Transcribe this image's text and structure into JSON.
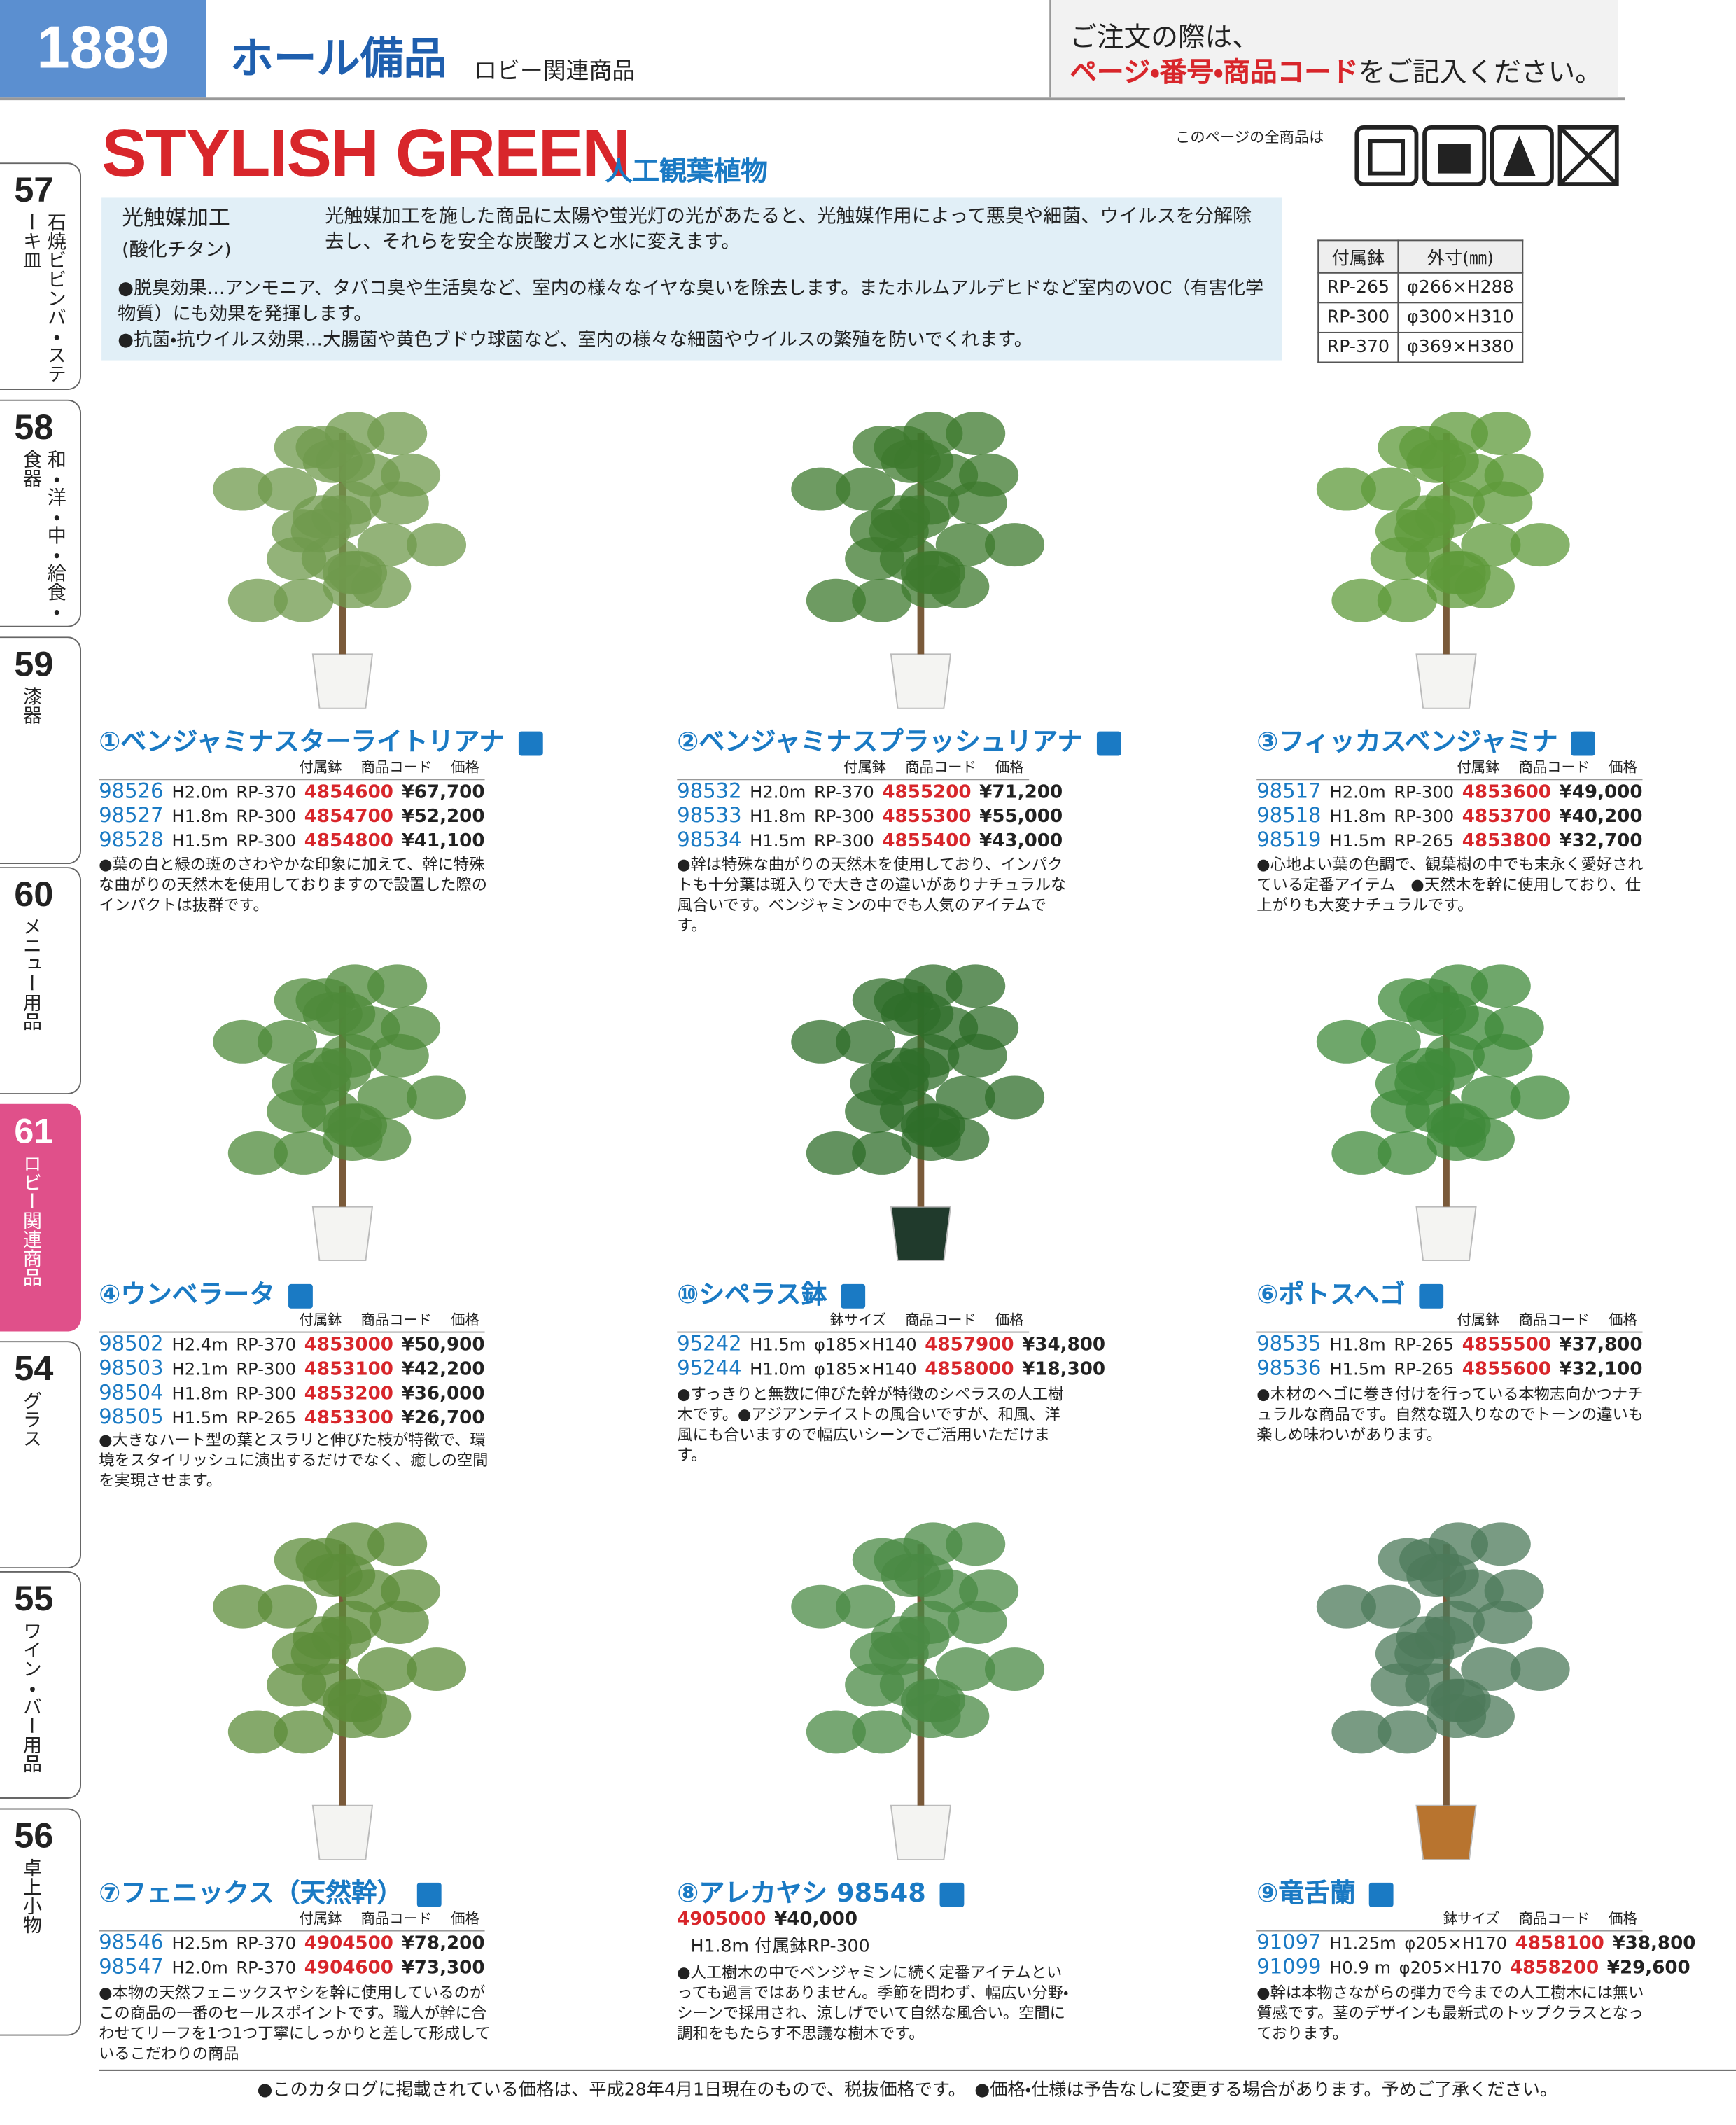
{
  "header": {
    "page": "1889",
    "section": "ホール備品",
    "subsection": "ロビー関連商品",
    "notice_line1": "ご注文の際は、",
    "notice_emph": "ページ・番号・商品コード",
    "notice_tail": "をご記入ください。"
  },
  "tabs": [
    {
      "num": "57",
      "label": "石焼ビビンバ・ステーキ皿"
    },
    {
      "num": "58",
      "label": "和・洋・中・給食・食器"
    },
    {
      "num": "59",
      "label": "漆器"
    },
    {
      "num": "60",
      "label": "メニュー用品"
    },
    {
      "num": "61",
      "label": "ロビー関連商品",
      "active": true
    },
    {
      "num": "54",
      "label": "グラス"
    },
    {
      "num": "55",
      "label": "ワイン・バー用品"
    },
    {
      "num": "56",
      "label": "卓上小物"
    }
  ],
  "title": {
    "main": "STYLISH GREEN",
    "sub": "人工観葉植物",
    "icons_label": "このページの全商品は"
  },
  "info": {
    "heading": "光触媒加工",
    "subheading": "(酸化チタン)",
    "description": "光触媒加工を施した商品に太陽や蛍光灯の光があたると、光触媒作用によって悪臭や細菌、ウイルスを分解除去し、それらを安全な炭酸ガスと水に変えます。",
    "bullets": [
      "●脱臭効果…アンモニア、タバコ臭や生活臭など、室内の様々なイヤな臭いを除去します。またホルムアルデヒドなど室内のVOC（有害化学物質）にも効果を発揮します。",
      "●抗菌・抗ウイルス効果…大腸菌や黄色ブドウ球菌など、室内の様々な細菌やウイルスの繁殖を防いでくれます。"
    ]
  },
  "pot_table": {
    "header": [
      "付属鉢",
      "外寸(㎜)"
    ],
    "rows": [
      [
        "RP-265",
        "φ266×H288"
      ],
      [
        "RP-300",
        "φ300×H310"
      ],
      [
        "RP-370",
        "φ369×H380"
      ]
    ]
  },
  "products": [
    {
      "number": "①",
      "name": "ベンジャミナスターライトリアナ",
      "columns": [
        "付属鉢",
        "商品コード",
        "価格"
      ],
      "rows": [
        [
          "98526",
          "H2.0m",
          "RP-370",
          "4854600",
          "¥67,700"
        ],
        [
          "98527",
          "H1.8m",
          "RP-300",
          "4854700",
          "¥52,200"
        ],
        [
          "98528",
          "H1.5m",
          "RP-300",
          "4854800",
          "¥41,100"
        ]
      ],
      "note": "●葉の白と緑の斑のさわやかな印象に加えて、幹に特殊な曲がりの天然木を使用しておりますので設置した際のインパクトは抜群です。"
    },
    {
      "number": "②",
      "name": "ベンジャミナスプラッシュリアナ",
      "columns": [
        "付属鉢",
        "商品コード",
        "価格"
      ],
      "rows": [
        [
          "98532",
          "H2.0m",
          "RP-370",
          "4855200",
          "¥71,200"
        ],
        [
          "98533",
          "H1.8m",
          "RP-300",
          "4855300",
          "¥55,000"
        ],
        [
          "98534",
          "H1.5m",
          "RP-300",
          "4855400",
          "¥43,000"
        ]
      ],
      "note": "●幹は特殊な曲がりの天然木を使用しており、インパクトも十分葉は斑入りで大きさの違いがありナチュラルな風合いです。ベンジャミンの中でも人気のアイテムです。"
    },
    {
      "number": "③",
      "name": "フィッカスベンジャミナ",
      "columns": [
        "付属鉢",
        "商品コード",
        "価格"
      ],
      "rows": [
        [
          "98517",
          "H2.0m",
          "RP-300",
          "4853600",
          "¥49,000"
        ],
        [
          "98518",
          "H1.8m",
          "RP-300",
          "4853700",
          "¥40,200"
        ],
        [
          "98519",
          "H1.5m",
          "RP-265",
          "4853800",
          "¥32,700"
        ]
      ],
      "note": "●心地よい葉の色調で、観葉樹の中でも末永く愛好されている定番アイテム　●天然木を幹に使用しており、仕上がりも大変ナチュラルです。"
    },
    {
      "number": "④",
      "name": "ウンベラータ",
      "columns": [
        "付属鉢",
        "商品コード",
        "価格"
      ],
      "rows": [
        [
          "98502",
          "H2.4m",
          "RP-370",
          "4853000",
          "¥50,900"
        ],
        [
          "98503",
          "H2.1m",
          "RP-300",
          "4853100",
          "¥42,200"
        ],
        [
          "98504",
          "H1.8m",
          "RP-300",
          "4853200",
          "¥36,000"
        ],
        [
          "98505",
          "H1.5m",
          "RP-265",
          "4853300",
          "¥26,700"
        ]
      ],
      "note": "●大きなハート型の葉とスラリと伸びた枝が特徴で、環境をスタイリッシュに演出するだけでなく、癒しの空間を実現させます。"
    },
    {
      "number": "⑩",
      "name": "シペラス鉢",
      "columns": [
        "鉢サイズ",
        "商品コード",
        "価格"
      ],
      "rows": [
        [
          "95242",
          "H1.5m",
          "φ185×H140",
          "4857900",
          "¥34,800"
        ],
        [
          "95244",
          "H1.0m",
          "φ185×H140",
          "4858000",
          "¥18,300"
        ]
      ],
      "note": "●すっきりと無数に伸びた幹が特徴のシペラスの人工樹木です。●アジアンテイストの風合いですが、和風、洋風にも合いますので幅広いシーンでご活用いただけます。"
    },
    {
      "number": "⑥",
      "name": "ポトスヘゴ",
      "columns": [
        "付属鉢",
        "商品コード",
        "価格"
      ],
      "rows": [
        [
          "98535",
          "H1.8m",
          "RP-265",
          "4855500",
          "¥37,800"
        ],
        [
          "98536",
          "H1.5m",
          "RP-265",
          "4855600",
          "¥32,100"
        ]
      ],
      "note": "●木材のヘゴに巻き付けを行っている本物志向かつナチュラルな商品です。自然な斑入りなのでトーンの違いも楽しめ味わいがあります。"
    },
    {
      "number": "⑦",
      "name": "フェニックス（天然幹）",
      "columns": [
        "付属鉢",
        "商品コード",
        "価格"
      ],
      "rows": [
        [
          "98546",
          "H2.5m",
          "RP-370",
          "4904500",
          "¥78,200"
        ],
        [
          "98547",
          "H2.0m",
          "RP-370",
          "4904600",
          "¥73,300"
        ]
      ],
      "note": "●本物の天然フェニックスヤシを幹に使用しているのがこの商品の一番のセールスポイントです。職人が幹に合わせてリーフを1つ1つ丁寧にしっかりと差して形成しているこだわりの商品"
    },
    {
      "number": "⑧",
      "name": "アレカヤシ 98548",
      "code_line": [
        "4905000",
        "¥40,000"
      ],
      "spec_line": "H1.8m 付属鉢RP-300",
      "note": "●人工樹木の中でベンジャミンに続く定番アイテムといっても過言ではありません。季節を問わず、幅広い分野・シーンで採用され、涼しげでいて自然な風合い。空間に調和をもたらす不思議な樹木です。"
    },
    {
      "number": "⑨",
      "name": "竜舌蘭",
      "columns": [
        "鉢サイズ",
        "商品コード",
        "価格"
      ],
      "rows": [
        [
          "91097",
          "H1.25m",
          "φ205×H170",
          "4858100",
          "¥38,800"
        ],
        [
          "91099",
          "H0.9 m",
          "φ205×H170",
          "4858200",
          "¥29,600"
        ]
      ],
      "note": "●幹は本物さながらの弾力で今までの人工樹木には無い質感です。茎のデザインも最新式のトップクラスとなっております。"
    }
  ],
  "footer": [
    "●このカタログに掲載されている価格は、平成28年4月1日現在のもので、税抜価格です。",
    "●価格・仕様は予告なしに変更する場合があります。予めご了承ください。"
  ]
}
